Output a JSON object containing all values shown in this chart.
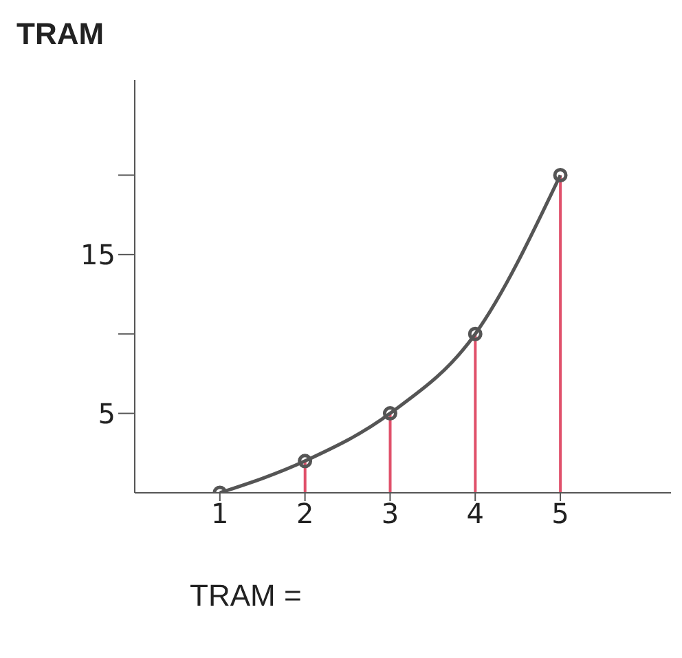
{
  "chart_data": {
    "type": "line",
    "title": "TRAM",
    "annotations": [
      "TRAM ="
    ],
    "x": [
      1,
      2,
      3,
      4,
      5
    ],
    "series": [
      {
        "color": "#555555",
        "values": [
          0,
          2,
          5,
          10,
          20
        ],
        "marker": "circle"
      },
      {
        "type": "bar",
        "color": "#e0506a",
        "values": [
          null,
          2,
          5,
          10,
          20
        ]
      }
    ],
    "xlim": [
      0,
      6.3
    ],
    "xticks": [
      1,
      2,
      3,
      4,
      5
    ],
    "ylim": [
      0,
      26
    ],
    "yticks": [
      {
        "value": 5,
        "label": "5"
      },
      {
        "value": 10,
        "label": null
      },
      {
        "value": 15,
        "label": "15"
      },
      {
        "value": 20,
        "label": null
      }
    ],
    "grid": false,
    "legend": false
  }
}
